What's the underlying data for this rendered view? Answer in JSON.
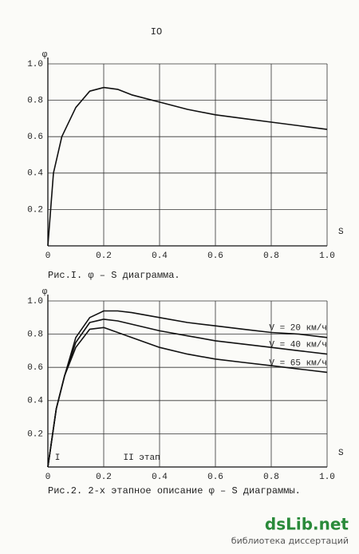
{
  "page_number": "IO",
  "watermark": {
    "brand": "dsLib.net",
    "tagline": "библиотека диссертаций"
  },
  "chart_data": [
    {
      "type": "line",
      "caption": "Рис.I.   φ – S  диаграмма.",
      "x_label": "S",
      "y_label": "φ",
      "color": "#111111",
      "x": [
        0,
        0.02,
        0.05,
        0.1,
        0.15,
        0.2,
        0.25,
        0.3,
        0.4,
        0.5,
        0.6,
        0.7,
        0.8,
        0.9,
        1.0
      ],
      "values": [
        0,
        0.4,
        0.6,
        0.76,
        0.85,
        0.87,
        0.86,
        0.83,
        0.79,
        0.75,
        0.72,
        0.7,
        0.68,
        0.66,
        0.64
      ],
      "xlim": [
        0,
        1
      ],
      "ylim": [
        0,
        1
      ],
      "grid": true,
      "xticks": [
        0,
        0.2,
        0.4,
        0.6,
        0.8,
        {
          "value": 1,
          "label": "1.0"
        }
      ],
      "yticks": [
        0.2,
        0.4,
        0.6,
        0.8,
        {
          "value": 1,
          "label": "1.0"
        }
      ]
    },
    {
      "type": "line",
      "caption": "Рис.2. 2-х этапное описание  φ – S  диаграммы.",
      "x_label": "S",
      "y_label": "φ",
      "annotations": [
        "I",
        "II этап"
      ],
      "x": [
        0,
        0.03,
        0.06,
        0.1,
        0.15,
        0.2,
        0.25,
        0.3,
        0.4,
        0.5,
        0.6,
        0.7,
        0.8,
        0.9,
        1.0
      ],
      "series": [
        {
          "name": "V = 20 км/ч",
          "color": "#111111",
          "values": [
            0,
            0.35,
            0.55,
            0.78,
            0.9,
            0.94,
            0.94,
            0.93,
            0.9,
            0.87,
            0.85,
            0.83,
            0.81,
            0.8,
            0.78
          ]
        },
        {
          "name": "V = 40 км/ч",
          "color": "#111111",
          "values": [
            0,
            0.35,
            0.55,
            0.75,
            0.87,
            0.89,
            0.88,
            0.86,
            0.82,
            0.79,
            0.76,
            0.74,
            0.72,
            0.7,
            0.68
          ]
        },
        {
          "name": "V = 65 км/ч",
          "color": "#111111",
          "values": [
            0,
            0.35,
            0.55,
            0.72,
            0.83,
            0.84,
            0.81,
            0.78,
            0.72,
            0.68,
            0.65,
            0.63,
            0.61,
            0.59,
            0.57
          ]
        }
      ],
      "xlim": [
        0,
        1
      ],
      "ylim": [
        0,
        1
      ],
      "grid": true,
      "xticks": [
        0,
        0.2,
        0.4,
        0.6,
        0.8,
        {
          "value": 1,
          "label": "1.0"
        }
      ],
      "yticks": [
        0.2,
        0.4,
        0.6,
        0.8,
        {
          "value": 1,
          "label": "1.0"
        }
      ]
    }
  ]
}
